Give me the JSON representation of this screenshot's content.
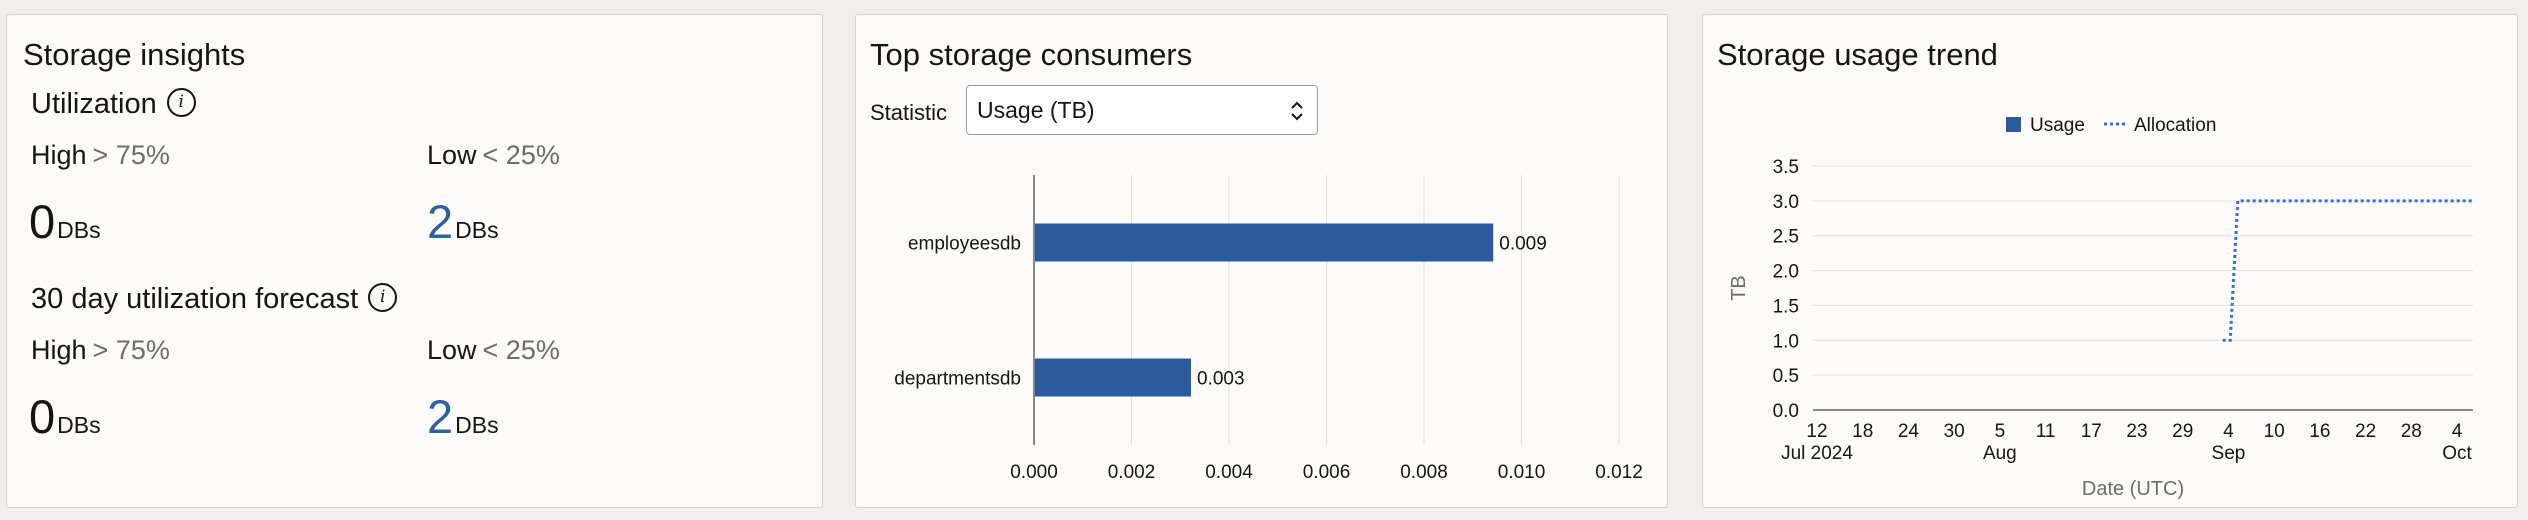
{
  "insights": {
    "title": "Storage insights",
    "utilization": {
      "heading": "Utilization",
      "info_icon": "info-icon",
      "high": {
        "label": "High",
        "threshold": "> 75%",
        "count": "0",
        "unit": "DBs"
      },
      "low": {
        "label": "Low",
        "threshold": "< 25%",
        "count": "2",
        "unit": "DBs"
      }
    },
    "forecast": {
      "heading": "30 day utilization forecast",
      "info_icon": "info-icon",
      "high": {
        "label": "High",
        "threshold": "> 75%",
        "count": "0",
        "unit": "DBs"
      },
      "low": {
        "label": "Low",
        "threshold": "< 25%",
        "count": "2",
        "unit": "DBs"
      }
    },
    "accent_color": "#2b62a1"
  },
  "consumers": {
    "title": "Top storage consumers",
    "statistic_label": "Statistic",
    "statistic_value": "Usage (TB)",
    "chevron_icon": "chevron-up-down-icon",
    "chart_data": {
      "type": "bar",
      "orientation": "horizontal",
      "categories": [
        "employeesdb",
        "departmentsdb"
      ],
      "values": [
        0.0094,
        0.0032
      ],
      "value_labels": [
        "0.009",
        "0.003"
      ],
      "xlim": [
        0,
        0.012
      ],
      "x_ticks": [
        "0.000",
        "0.002",
        "0.004",
        "0.006",
        "0.008",
        "0.010",
        "0.012"
      ],
      "color": "#2a5b9f",
      "grid": true
    }
  },
  "trend": {
    "title": "Storage usage trend",
    "chart_data": {
      "type": "line",
      "legend": [
        "Usage",
        "Allocation"
      ],
      "legend_placement": "top-center",
      "xlabel": "Date (UTC)",
      "ylabel": "TB",
      "ylim": [
        0,
        3.5
      ],
      "y_ticks": [
        "3.5",
        "3.0",
        "2.5",
        "2.0",
        "1.5",
        "1.0",
        "0.5",
        "0.0"
      ],
      "x_ticks": [
        "12",
        "18",
        "24",
        "30",
        "5",
        "11",
        "17",
        "23",
        "29",
        "4",
        "10",
        "16",
        "22",
        "28",
        "4"
      ],
      "x_month_labels": [
        {
          "label": "Jul 2024",
          "at_tick": 0
        },
        {
          "label": "Aug",
          "at_tick": 4
        },
        {
          "label": "Sep",
          "at_tick": 9
        },
        {
          "label": "Oct",
          "at_tick": 14
        }
      ],
      "x_range": [
        "2024-07-12",
        "2024-10-07"
      ],
      "series": [
        {
          "name": "Allocation",
          "style": "dotted",
          "color": "#2f6fe0",
          "points": [
            {
              "x": "2024-09-04",
              "y": 1.0
            },
            {
              "x": "2024-09-05",
              "y": 1.0
            },
            {
              "x": "2024-09-05",
              "y": 1.0
            },
            {
              "x": "2024-09-06",
              "y": 3.0
            },
            {
              "x": "2024-10-07",
              "y": 3.0
            }
          ]
        },
        {
          "name": "Usage",
          "style": "solid",
          "color": "#2a5b9f",
          "points": []
        }
      ]
    }
  }
}
